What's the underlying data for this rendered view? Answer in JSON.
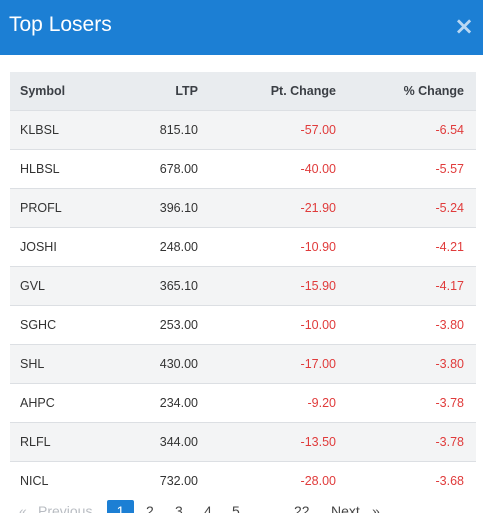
{
  "modal": {
    "title": "Top Losers",
    "close_glyph": "×",
    "accent_color": "#1c7fd4",
    "negative_color": "#e03b3b"
  },
  "table": {
    "headers": {
      "symbol": "Symbol",
      "ltp": "LTP",
      "pt_change": "Pt. Change",
      "pct_change": "% Change"
    },
    "rows": [
      {
        "symbol": "KLBSL",
        "ltp": "815.10",
        "pt_change": "-57.00",
        "pct_change": "-6.54"
      },
      {
        "symbol": "HLBSL",
        "ltp": "678.00",
        "pt_change": "-40.00",
        "pct_change": "-5.57"
      },
      {
        "symbol": "PROFL",
        "ltp": "396.10",
        "pt_change": "-21.90",
        "pct_change": "-5.24"
      },
      {
        "symbol": "JOSHI",
        "ltp": "248.00",
        "pt_change": "-10.90",
        "pct_change": "-4.21"
      },
      {
        "symbol": "GVL",
        "ltp": "365.10",
        "pt_change": "-15.90",
        "pct_change": "-4.17"
      },
      {
        "symbol": "SGHC",
        "ltp": "253.00",
        "pt_change": "-10.00",
        "pct_change": "-3.80"
      },
      {
        "symbol": "SHL",
        "ltp": "430.00",
        "pt_change": "-17.00",
        "pct_change": "-3.80"
      },
      {
        "symbol": "AHPC",
        "ltp": "234.00",
        "pt_change": "-9.20",
        "pct_change": "-3.78"
      },
      {
        "symbol": "RLFL",
        "ltp": "344.00",
        "pt_change": "-13.50",
        "pct_change": "-3.78"
      },
      {
        "symbol": "NICL",
        "ltp": "732.00",
        "pt_change": "-28.00",
        "pct_change": "-3.68"
      }
    ]
  },
  "pagination": {
    "first_glyph": "«",
    "previous": "Previous",
    "pages": [
      "1",
      "2",
      "3",
      "4",
      "5"
    ],
    "last_page": "22",
    "next": "Next",
    "last_glyph": "»",
    "current_page": "1"
  }
}
